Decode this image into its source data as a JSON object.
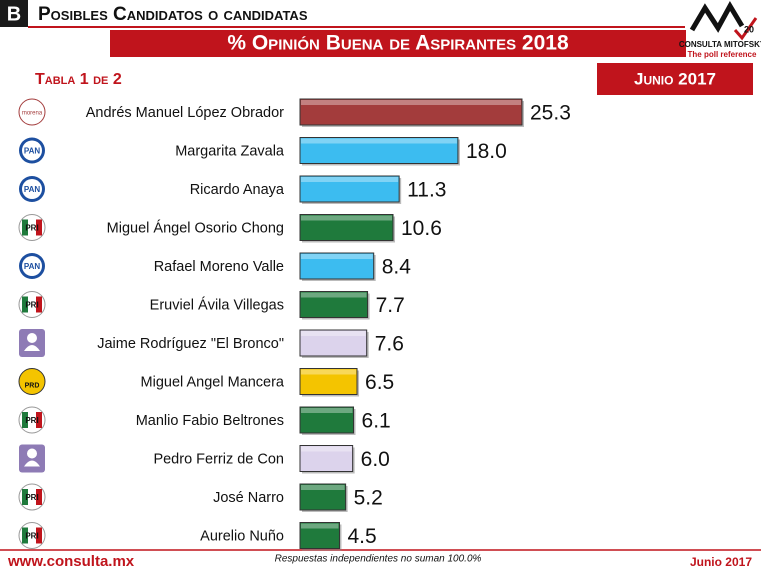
{
  "header": {
    "section": "B",
    "title": "Posibles Candidatos o candidatas",
    "table_label": "Tabla 1 de 2",
    "date": "Junio 2017",
    "logo": {
      "name": "CONSULTA MITOFSKY",
      "tagline": "The poll reference",
      "anniversary": "20"
    }
  },
  "chart_data": {
    "type": "hbar",
    "title": "% Opinión Buena de Aspirantes 2018",
    "categories": [
      "Andrés Manuel López Obrador",
      "Margarita Zavala",
      "Ricardo Anaya",
      "Miguel Ángel Osorio Chong",
      "Rafael Moreno Valle",
      "Eruviel Ávila Villegas",
      "Jaime Rodríguez \"El Bronco\"",
      "Miguel Angel Mancera",
      "Manlio Fabio Beltrones",
      "Pedro Ferriz de Con",
      "José Narro",
      "Aurelio Nuño"
    ],
    "values": [
      25.3,
      18.0,
      11.3,
      10.6,
      8.4,
      7.7,
      7.6,
      6.5,
      6.1,
      6.0,
      5.2,
      4.5
    ],
    "value_labels": [
      "25.3",
      "18.0",
      "11.3",
      "10.6",
      "8.4",
      "7.7",
      "7.6",
      "6.5",
      "6.1",
      "6.0",
      "5.2",
      "4.5"
    ],
    "icons": [
      "morena",
      "PAN",
      "PAN",
      "PRI",
      "PAN",
      "PRI",
      null,
      "PRD",
      "PRI",
      null,
      "PRI",
      "PRI"
    ],
    "colors": [
      "#a33c3c",
      "#3cbcf0",
      "#3cbcf0",
      "#1f7a3c",
      "#3cbcf0",
      "#1f7a3c",
      "#dcd3ec",
      "#f4c400",
      "#1f7a3c",
      "#dcd3ec",
      "#1f7a3c",
      "#1f7a3c"
    ]
  },
  "footer": {
    "url": "www.consulta.mx",
    "note": "Respuestas independientes no suman 100.0%",
    "date": "Junio 2017"
  }
}
